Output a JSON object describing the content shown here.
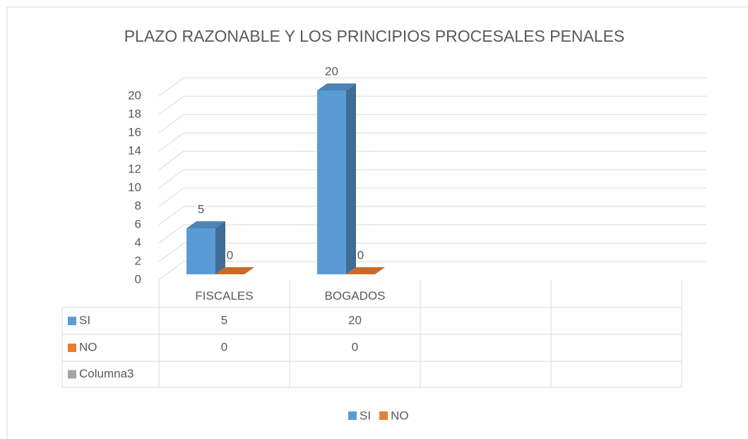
{
  "chart_data": {
    "type": "bar3d",
    "title": "PLAZO RAZONABLE Y LOS PRINCIPIOS PROCESALES PENALES",
    "categories": [
      "FISCALES",
      "BOGADOS",
      null,
      null
    ],
    "series": [
      {
        "name": "SI",
        "color": "#5b9bd5",
        "values": [
          5,
          20,
          null,
          null
        ]
      },
      {
        "name": "NO",
        "color": "#ed7d31",
        "values": [
          0,
          0,
          null,
          null
        ]
      },
      {
        "name": "Columna3",
        "color": "#a5a5a5",
        "values": [
          null,
          null,
          null,
          null
        ]
      }
    ],
    "ylim": [
      0,
      20
    ],
    "yticks": [
      0,
      2,
      4,
      6,
      8,
      10,
      12,
      14,
      16,
      18,
      20
    ],
    "grid": true,
    "data_table": true,
    "legend": "bottom"
  }
}
